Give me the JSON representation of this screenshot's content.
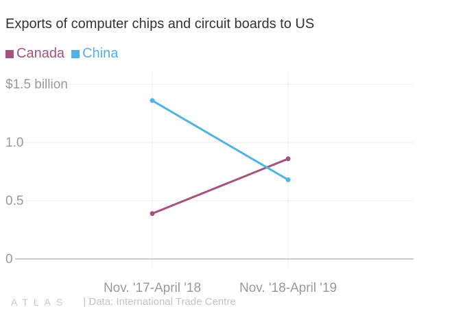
{
  "chart_data": {
    "type": "line",
    "title": "Exports of computer chips and circuit boards to US",
    "categories": [
      "Nov. '17-April '18",
      "Nov. '18-April '19"
    ],
    "series": [
      {
        "name": "Canada",
        "values": [
          0.39,
          0.86
        ],
        "color": "#a4527f"
      },
      {
        "name": "China",
        "values": [
          1.36,
          0.68
        ],
        "color": "#51b2e5"
      }
    ],
    "yticks": [
      {
        "value": 0,
        "label": "0"
      },
      {
        "value": 0.5,
        "label": "0.5"
      },
      {
        "value": 1.0,
        "label": "1.0"
      },
      {
        "value": 1.5,
        "label": "$1.5 billion"
      }
    ],
    "ylim": [
      0,
      1.5
    ],
    "xlabel": "",
    "ylabel": "",
    "grid": true,
    "legend_position": "top-left"
  },
  "footer": {
    "logo": "ATLAS",
    "source": "| Data: International Trade Centre"
  },
  "colors": {
    "title": "#333333",
    "axis_text": "#999999",
    "grid": "#ececec",
    "baseline": "#999999"
  }
}
